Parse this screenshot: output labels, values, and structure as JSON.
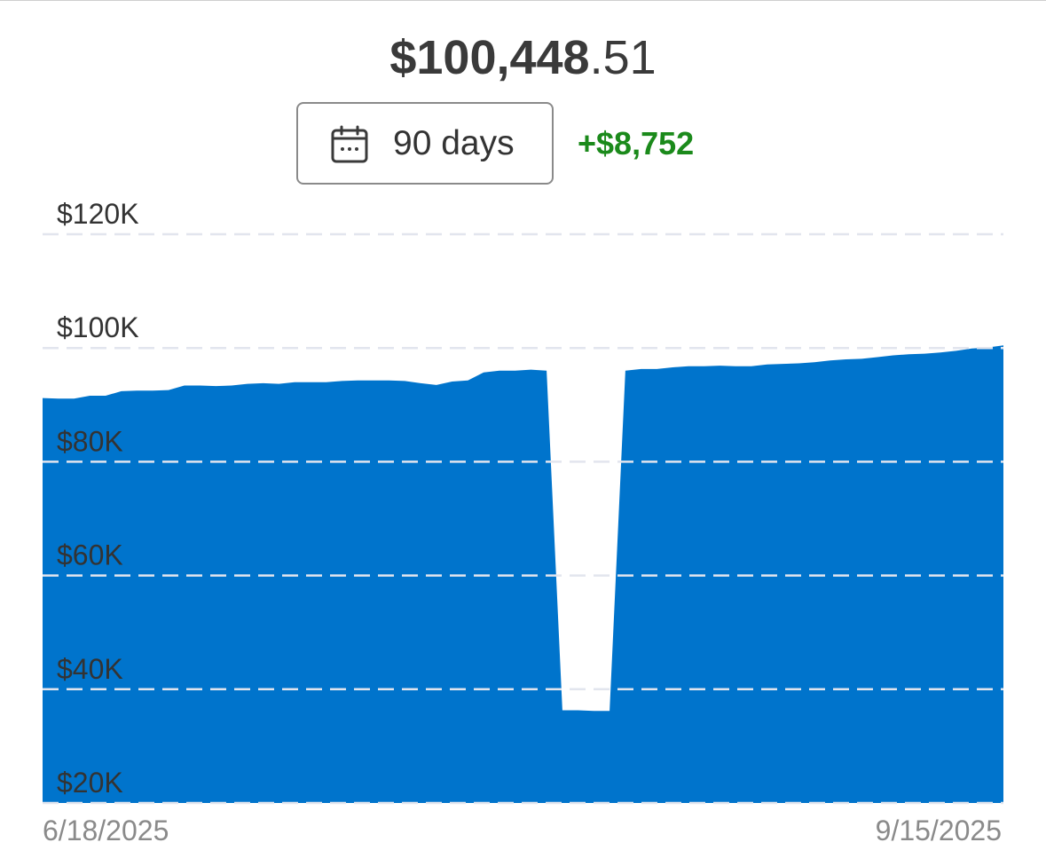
{
  "header": {
    "balance_whole": "$100,448",
    "balance_cents": ".51",
    "range_label": "90 days",
    "change": "+$8,752"
  },
  "colors": {
    "area_fill": "#0074CC",
    "change_positive": "#1B8A1B",
    "grid": "#E2E5EE"
  },
  "icons": {
    "range": "calendar-icon"
  },
  "chart_data": {
    "type": "area",
    "series": [
      {
        "values": [
          91200,
          91100,
          91100,
          91600,
          91600,
          92400,
          92500,
          92500,
          92600,
          93400,
          93400,
          93300,
          93400,
          93700,
          93800,
          93700,
          94000,
          94000,
          94000,
          94200,
          94300,
          94300,
          94300,
          94200,
          93800,
          93500,
          94100,
          94300,
          95700,
          96000,
          96000,
          96200,
          96000,
          36300,
          36300,
          36200,
          36200,
          96000,
          96300,
          96300,
          96600,
          96800,
          96800,
          96900,
          96800,
          96800,
          97100,
          97200,
          97300,
          97500,
          97800,
          98000,
          98100,
          98400,
          98700,
          98900,
          99000,
          99200,
          99500,
          99900,
          100100,
          100449
        ]
      }
    ],
    "x_start": "6/18/2025",
    "x_end": "9/15/2025",
    "y_ticks": [
      "$120K",
      "$100K",
      "$80K",
      "$60K",
      "$40K",
      "$20K"
    ],
    "y_tick_values": [
      120000,
      100000,
      80000,
      60000,
      40000,
      20000
    ],
    "ylim": [
      20000,
      120000
    ],
    "grid": true
  }
}
